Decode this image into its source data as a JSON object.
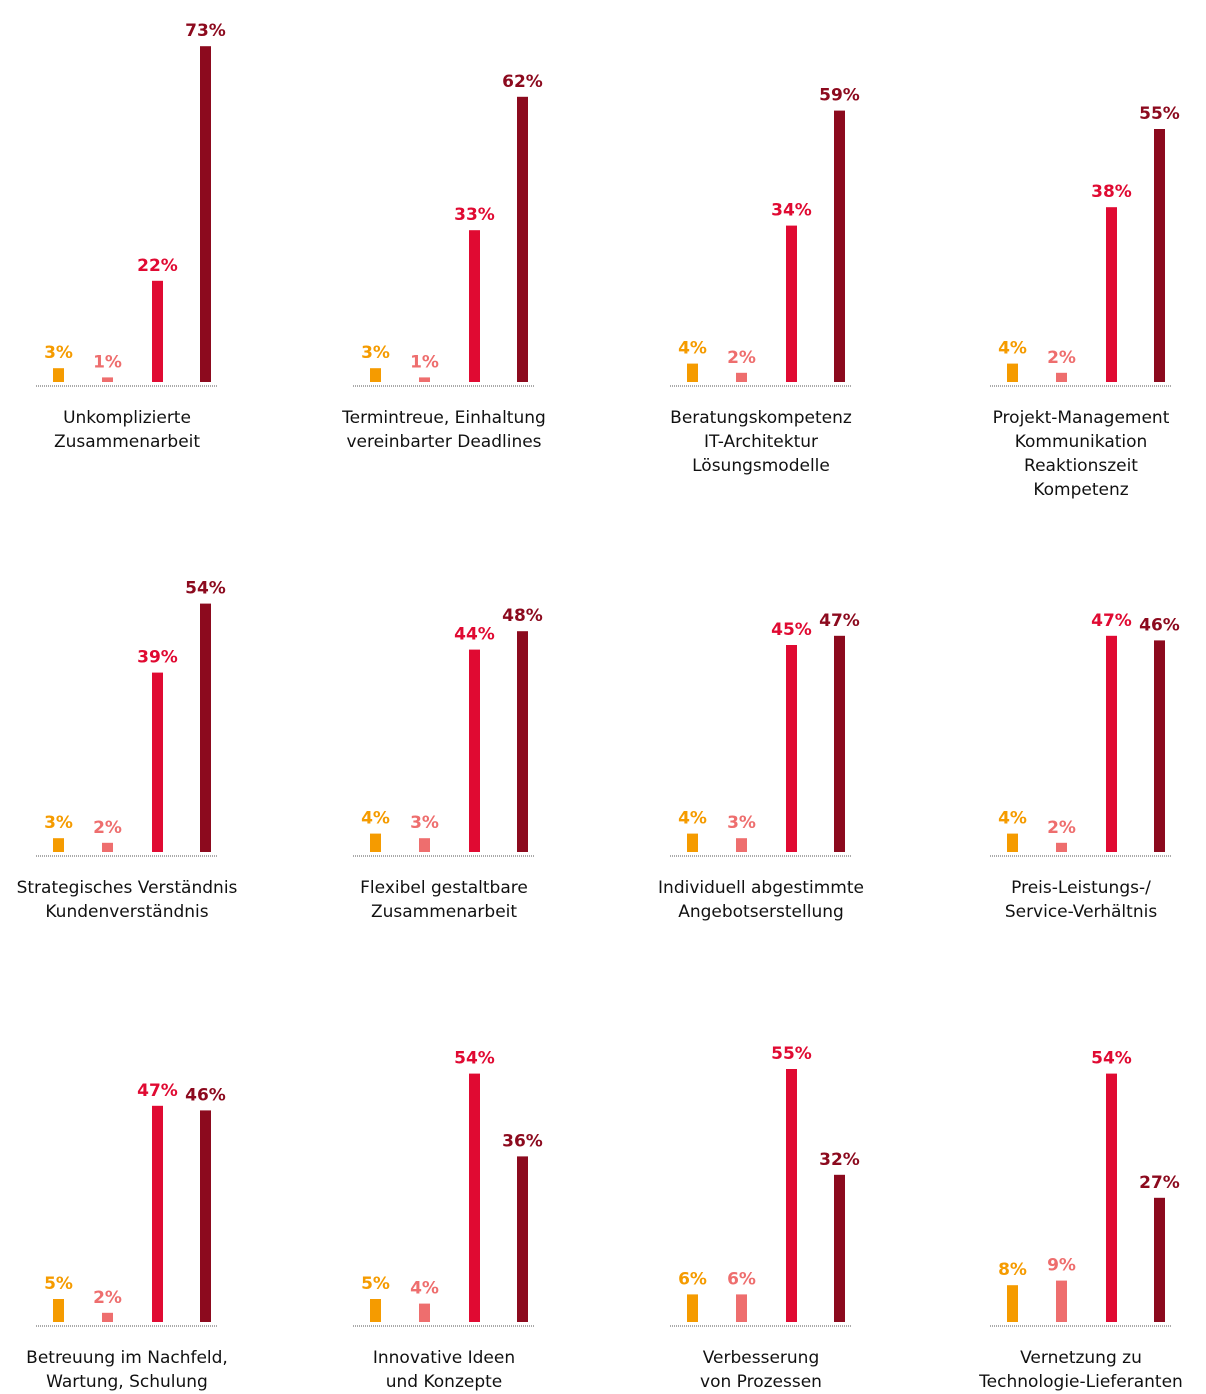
{
  "palette": {
    "series_colors": [
      "#F59B00",
      "#EE6E6E",
      "#E00A32",
      "#8C0A1E"
    ],
    "axis_color": "#555555",
    "text_color": "#111111"
  },
  "chart_data": [
    {
      "type": "bar",
      "title": "Unkomplizierte\nZusammenarbeit",
      "values": [
        3,
        1,
        22,
        73
      ],
      "value_labels": [
        "3%",
        "1%",
        "22%",
        "73%"
      ],
      "ylim": [
        0,
        75
      ]
    },
    {
      "type": "bar",
      "title": "Termintreue, Einhaltung\nvereinbarter Deadlines",
      "values": [
        3,
        1,
        33,
        62
      ],
      "value_labels": [
        "3%",
        "1%",
        "33%",
        "62%"
      ],
      "ylim": [
        0,
        75
      ]
    },
    {
      "type": "bar",
      "title": "Beratungskompetenz\nIT-Architektur\nLösungsmodelle",
      "values": [
        4,
        2,
        34,
        59
      ],
      "value_labels": [
        "4%",
        "2%",
        "34%",
        "59%"
      ],
      "ylim": [
        0,
        75
      ]
    },
    {
      "type": "bar",
      "title": "Projekt-Management\nKommunikation\nReaktionszeit\nKompetenz",
      "values": [
        4,
        2,
        38,
        55
      ],
      "value_labels": [
        "4%",
        "2%",
        "38%",
        "55%"
      ],
      "ylim": [
        0,
        75
      ]
    },
    {
      "type": "bar",
      "title": "Strategisches Verständnis\nKundenverständnis",
      "values": [
        3,
        2,
        39,
        54
      ],
      "value_labels": [
        "3%",
        "2%",
        "39%",
        "54%"
      ],
      "ylim": [
        0,
        75
      ]
    },
    {
      "type": "bar",
      "title": "Flexibel gestaltbare\nZusammenarbeit",
      "values": [
        4,
        3,
        44,
        48
      ],
      "value_labels": [
        "4%",
        "3%",
        "44%",
        "48%"
      ],
      "ylim": [
        0,
        75
      ]
    },
    {
      "type": "bar",
      "title": "Individuell abgestimmte\nAngebotserstellung",
      "values": [
        4,
        3,
        45,
        47
      ],
      "value_labels": [
        "4%",
        "3%",
        "45%",
        "47%"
      ],
      "ylim": [
        0,
        75
      ]
    },
    {
      "type": "bar",
      "title": "Preis-Leistungs-/\nService-Verhältnis",
      "values": [
        4,
        2,
        47,
        46
      ],
      "value_labels": [
        "4%",
        "2%",
        "47%",
        "46%"
      ],
      "ylim": [
        0,
        75
      ]
    },
    {
      "type": "bar",
      "title": "Betreuung im Nachfeld,\nWartung, Schulung",
      "values": [
        5,
        2,
        47,
        46
      ],
      "value_labels": [
        "5%",
        "2%",
        "47%",
        "46%"
      ],
      "ylim": [
        0,
        75
      ]
    },
    {
      "type": "bar",
      "title": "Innovative Ideen\nund Konzepte",
      "values": [
        5,
        4,
        54,
        36
      ],
      "value_labels": [
        "5%",
        "4%",
        "54%",
        "36%"
      ],
      "ylim": [
        0,
        75
      ]
    },
    {
      "type": "bar",
      "title": "Verbesserung\nvon Prozessen",
      "values": [
        6,
        6,
        55,
        32
      ],
      "value_labels": [
        "6%",
        "6%",
        "55%",
        "32%"
      ],
      "ylim": [
        0,
        75
      ]
    },
    {
      "type": "bar",
      "title": "Vernetzung zu\nTechnologie-Lieferanten",
      "values": [
        8,
        9,
        54,
        27
      ],
      "value_labels": [
        "8%",
        "9%",
        "54%",
        "27%"
      ],
      "ylim": [
        0,
        75
      ]
    }
  ]
}
